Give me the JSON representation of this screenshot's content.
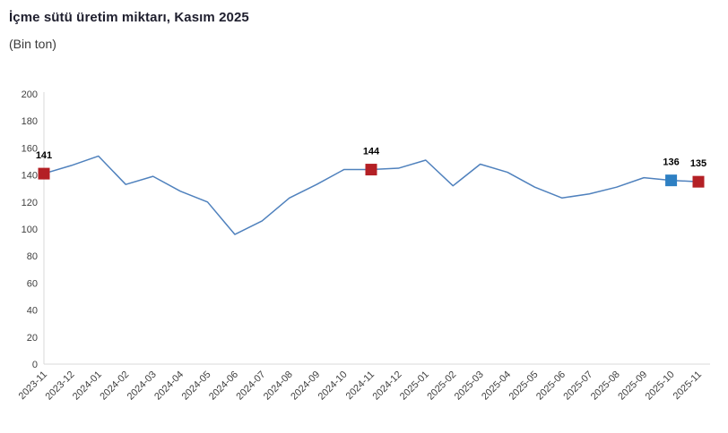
{
  "header": {
    "title": "İçme sütü üretim miktarı, Kasım 2025",
    "subtitle": "(Bin ton)"
  },
  "chart_data": {
    "type": "line",
    "title": "İçme sütü üretim miktarı, Kasım 2025",
    "subtitle": "(Bin ton)",
    "unit": "Bin ton",
    "categories": [
      "2023-11",
      "2023-12",
      "2024-01",
      "2024-02",
      "2024-03",
      "2024-04",
      "2024-05",
      "2024-06",
      "2024-07",
      "2024-08",
      "2024-09",
      "2024-10",
      "2024-11",
      "2024-12",
      "2025-01",
      "2025-02",
      "2025-03",
      "2025-04",
      "2025-05",
      "2025-06",
      "2025-07",
      "2025-08",
      "2025-09",
      "2025-10",
      "2025-11"
    ],
    "values": [
      141,
      147,
      154,
      133,
      139,
      128,
      120,
      96,
      106,
      123,
      133,
      144,
      144,
      145,
      151,
      132,
      148,
      142,
      131,
      123,
      126,
      131,
      138,
      136,
      135
    ],
    "highlighted_points": [
      {
        "category": "2023-11",
        "value": 141,
        "label": "141",
        "color": "#b42025"
      },
      {
        "category": "2024-11",
        "value": 144,
        "label": "144",
        "color": "#b42025"
      },
      {
        "category": "2025-10",
        "value": 136,
        "label": "136",
        "color": "#2e80c3"
      },
      {
        "category": "2025-11",
        "value": 135,
        "label": "135",
        "color": "#b42025"
      }
    ],
    "ylim": [
      0,
      200
    ],
    "ytick_step": 20,
    "grid": false,
    "legend": false,
    "colors": {
      "line": "#4f81bd",
      "marker_red": "#b42025",
      "marker_blue": "#2e80c3",
      "axis_line": "#d9d9d9",
      "tick_label": "#404040",
      "title": "#1f1f2e",
      "data_label": "#000000"
    }
  }
}
